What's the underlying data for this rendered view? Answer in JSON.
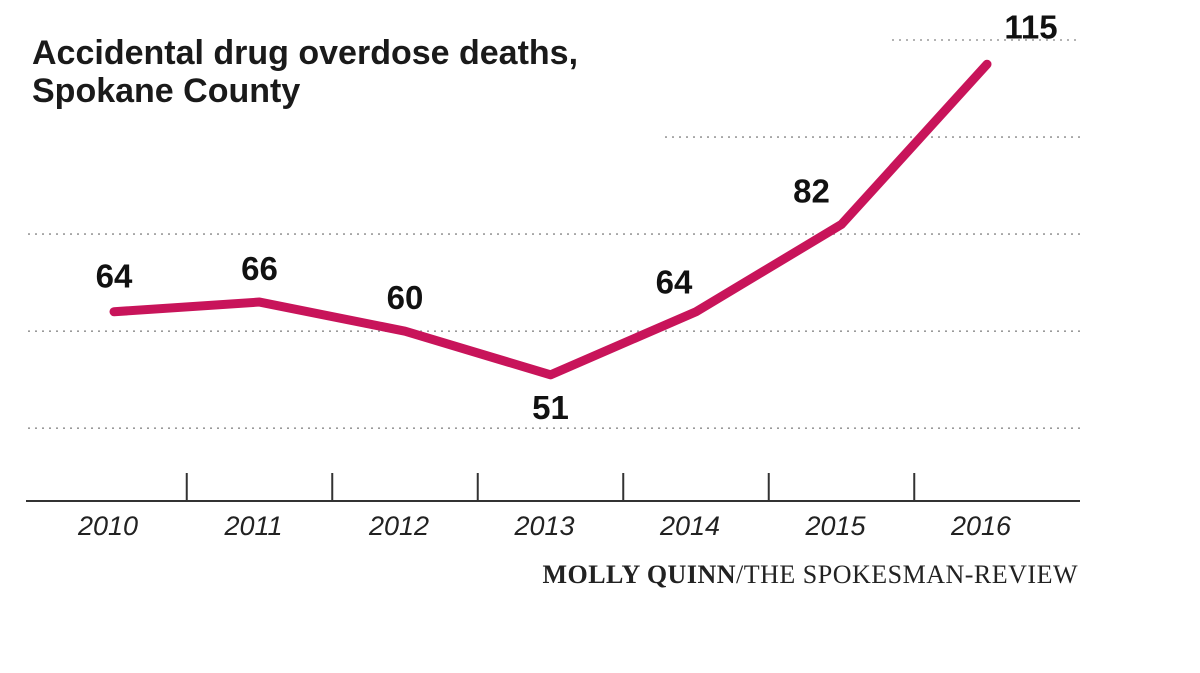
{
  "chart_data": {
    "type": "line",
    "title": "Accidental drug overdose deaths,",
    "subtitle": "Spokane County",
    "categories": [
      "2010",
      "2011",
      "2012",
      "2013",
      "2014",
      "2015",
      "2016"
    ],
    "values": [
      64,
      66,
      60,
      51,
      64,
      82,
      115
    ],
    "ylim": [
      25,
      120
    ],
    "grid": true,
    "grid_style": "dotted horizontal",
    "line_color": "#c8145a"
  },
  "credit": {
    "author": "MOLLY QUINN",
    "separator": "/",
    "publication": "THE SPOKESMAN-REVIEW"
  }
}
